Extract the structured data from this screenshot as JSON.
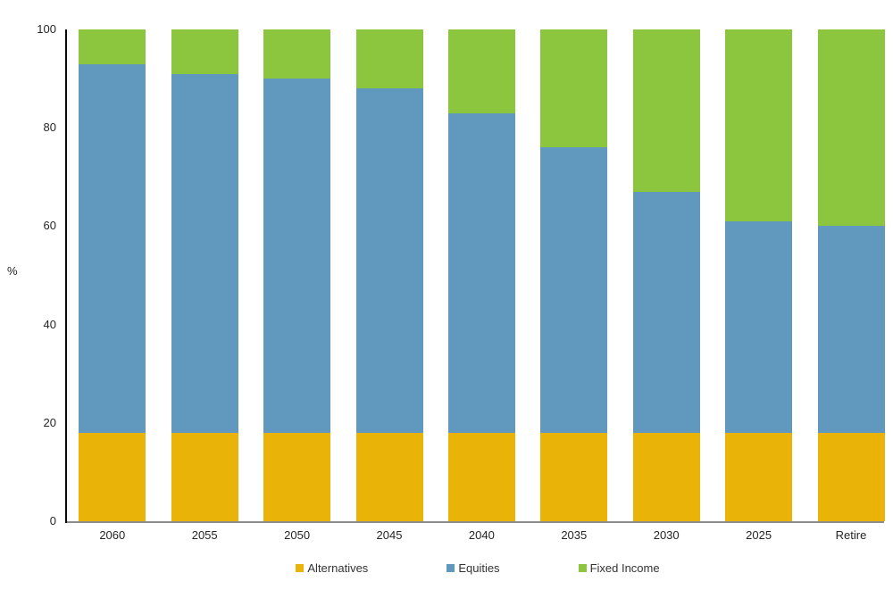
{
  "chart_data": {
    "type": "bar",
    "stacked": true,
    "title": "",
    "xlabel": "",
    "ylabel": "%",
    "ylim": [
      0,
      100
    ],
    "yticks": [
      0,
      20,
      40,
      60,
      80,
      100
    ],
    "grid": false,
    "legend_position": "bottom",
    "categories": [
      "2060",
      "2055",
      "2050",
      "2045",
      "2040",
      "2035",
      "2030",
      "2025",
      "Retire"
    ],
    "series": [
      {
        "name": "Alternatives",
        "color": "#E9B308",
        "values": [
          18,
          18,
          18,
          18,
          18,
          18,
          18,
          18,
          18
        ]
      },
      {
        "name": "Equities",
        "color": "#6099BD",
        "values": [
          75,
          73,
          72,
          70,
          65,
          58,
          49,
          43,
          42
        ]
      },
      {
        "name": "Fixed Income",
        "color": "#8CC63F",
        "values": [
          7,
          9,
          10,
          12,
          17,
          24,
          33,
          39,
          40
        ]
      }
    ]
  },
  "colors": {
    "y_axis_line": "#0a0a0a",
    "x_axis_line": "#8c8c8c",
    "text": "#262626",
    "background": "#ffffff"
  }
}
